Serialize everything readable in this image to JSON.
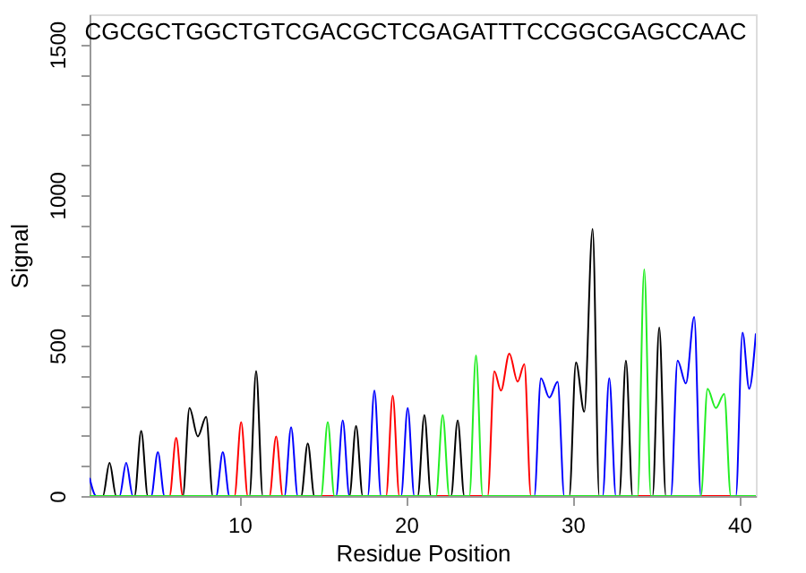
{
  "chart_data": {
    "type": "line",
    "xlabel": "Residue Position",
    "ylabel": "Signal",
    "xlim": [
      1,
      41
    ],
    "xticks": [
      10,
      20,
      30,
      40
    ],
    "ylim": [
      0,
      1600
    ],
    "yticks": [
      0,
      {
        "value": 100,
        "label": null
      },
      {
        "value": 200,
        "label": null
      },
      {
        "value": 300,
        "label": null
      },
      {
        "value": 400,
        "label": null
      },
      500,
      {
        "value": 600,
        "label": null
      },
      {
        "value": 700,
        "label": null
      },
      {
        "value": 800,
        "label": null
      },
      {
        "value": 900,
        "label": null
      },
      1000,
      {
        "value": 1100,
        "label": null
      },
      {
        "value": 1200,
        "label": null
      },
      {
        "value": 1300,
        "label": null
      },
      {
        "value": 1400,
        "label": null
      },
      1500
    ],
    "grid": false,
    "marker": "none",
    "line_style": "solid",
    "series": [
      {
        "color": "#0000ff",
        "x": [
          1,
          1.4,
          2.8,
          3.2,
          3.6,
          4.7,
          5.1,
          5.5,
          8.6,
          9.0,
          9.4,
          12.7,
          13.1,
          13.5,
          15.8,
          16.2,
          16.6,
          17.7,
          18.1,
          18.5,
          19.7,
          20.1,
          20.5,
          27.7,
          28.1,
          28.6,
          29.1,
          29.5,
          31.8,
          32.2,
          32.6,
          35.9,
          36.3,
          36.8,
          37.3,
          37.7,
          39.8,
          40.2,
          40.6,
          41
        ],
        "values": [
          60,
          0,
          0,
          110,
          0,
          0,
          146,
          0,
          0,
          146,
          0,
          0,
          228,
          0,
          0,
          251,
          0,
          0,
          350,
          0,
          0,
          292,
          0,
          0,
          391,
          327,
          379,
          0,
          0,
          391,
          0,
          0,
          450,
          374,
          595,
          0,
          0,
          543,
          356,
          540
        ]
      },
      {
        "color": "#000000",
        "x": [
          1,
          1.8,
          2.2,
          2.6,
          3.7,
          4.1,
          4.5,
          6.6,
          7.0,
          7.5,
          8.0,
          8.4,
          10.6,
          11.0,
          11.4,
          13.7,
          14.1,
          14.5,
          16.6,
          17.0,
          17.4,
          20.7,
          21.1,
          21.5,
          22.7,
          23.1,
          23.5,
          29.8,
          30.2,
          30.7,
          31.2,
          31.6,
          32.8,
          33.2,
          33.6,
          34.8,
          35.2,
          35.6,
          41
        ],
        "values": [
          0,
          0,
          110,
          0,
          0,
          216,
          0,
          0,
          292,
          198,
          263,
          0,
          0,
          415,
          0,
          0,
          175,
          0,
          0,
          233,
          0,
          0,
          269,
          0,
          0,
          251,
          0,
          0,
          444,
          280,
          887,
          0,
          0,
          450,
          0,
          0,
          560,
          0,
          0
        ]
      },
      {
        "color": "#ff0000",
        "x": [
          1,
          5.8,
          6.2,
          6.6,
          9.7,
          10.1,
          10.5,
          11.8,
          12.2,
          12.6,
          18.8,
          19.2,
          19.6,
          24.9,
          25.3,
          25.7,
          26.2,
          26.7,
          27.1,
          27.5,
          41
        ],
        "values": [
          0,
          0,
          193,
          0,
          0,
          245,
          0,
          0,
          198,
          0,
          0,
          333,
          0,
          0,
          414,
          350,
          473,
          380,
          438,
          0,
          0
        ]
      },
      {
        "color": "#22ee22",
        "x": [
          1,
          14.9,
          15.3,
          15.7,
          21.8,
          22.2,
          22.6,
          23.8,
          24.2,
          24.6,
          33.9,
          34.3,
          34.7,
          37.7,
          38.1,
          38.6,
          39.1,
          39.5,
          41
        ],
        "values": [
          0,
          0,
          245,
          0,
          0,
          269,
          0,
          0,
          467,
          0,
          0,
          753,
          0,
          0,
          356,
          292,
          339,
          0,
          0
        ]
      }
    ],
    "annotations": [
      "CGCGCTGGCTGTCGACGCTCGAGATTTCCGGCGAGCCAAC"
    ]
  }
}
